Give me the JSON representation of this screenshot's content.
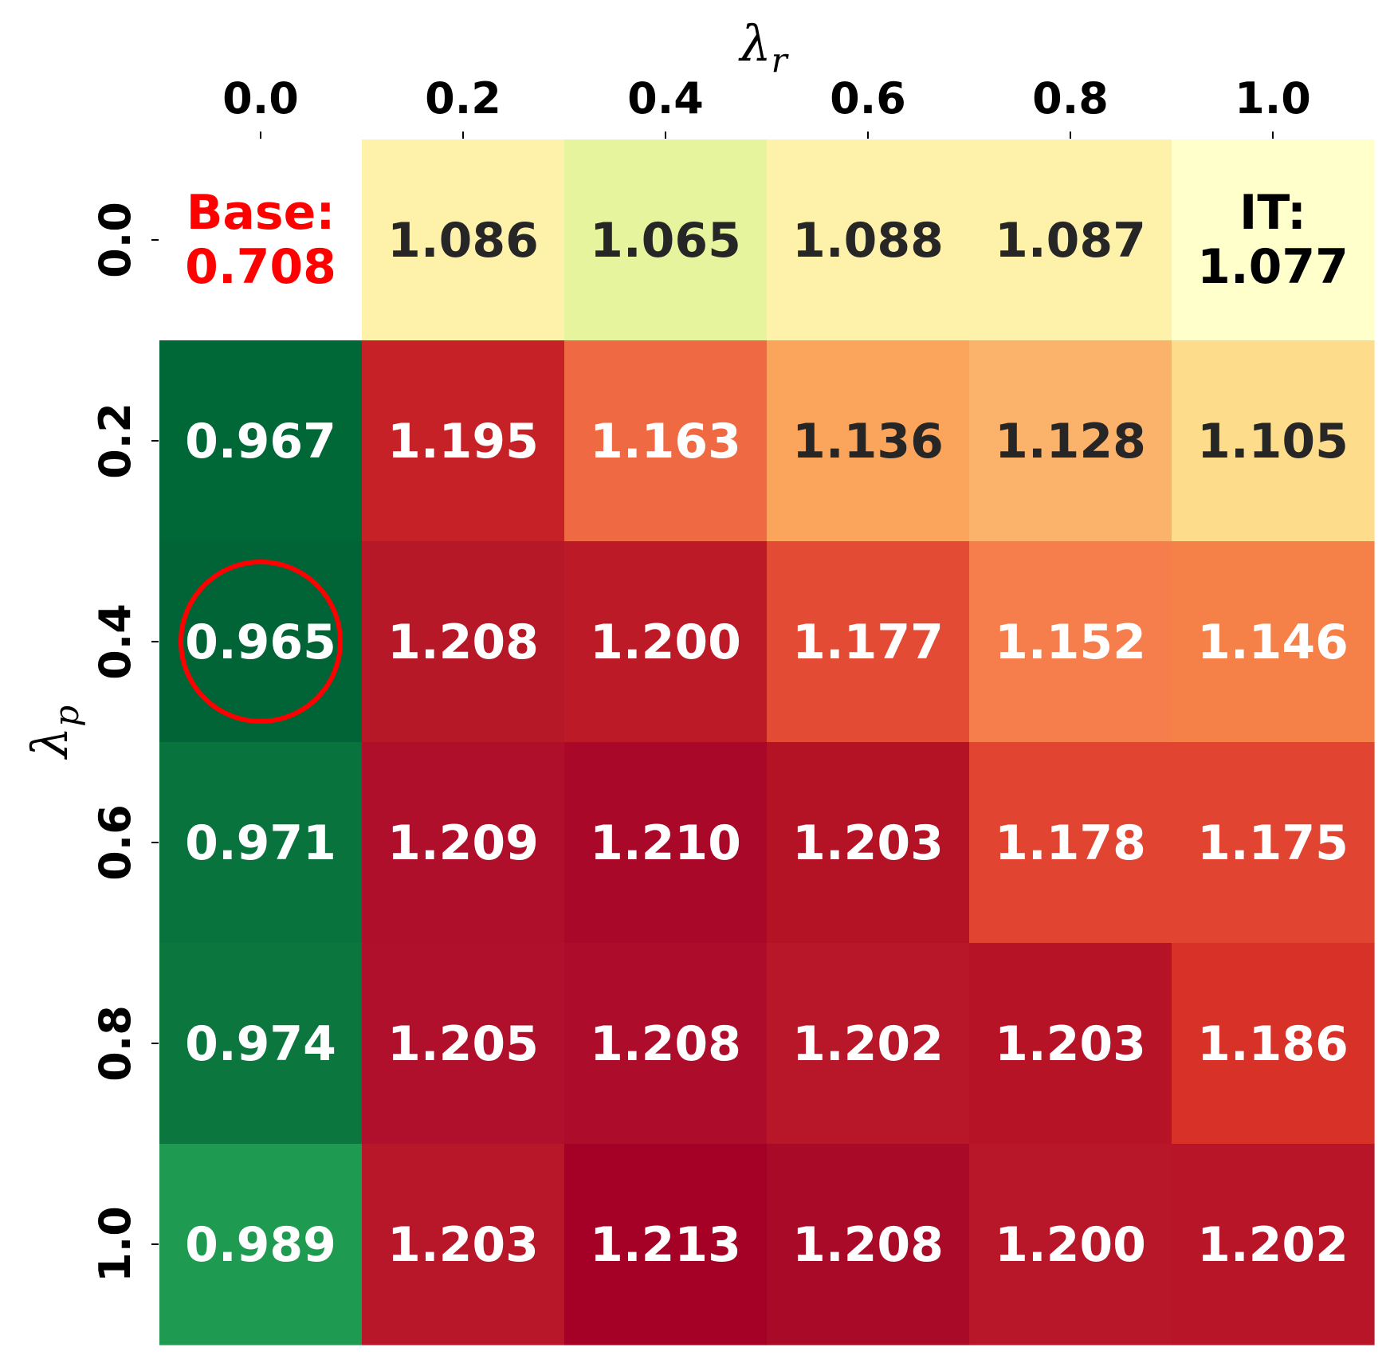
{
  "chart_data": {
    "type": "heatmap",
    "xlabel": "λ",
    "xlabel_sub": "r",
    "ylabel": "λ",
    "ylabel_sub": "p",
    "x_ticks": [
      "0.0",
      "0.2",
      "0.4",
      "0.6",
      "0.8",
      "1.0"
    ],
    "y_ticks": [
      "0.0",
      "0.2",
      "0.4",
      "0.6",
      "0.8",
      "1.0"
    ],
    "x_axis_position": "top",
    "colormap": "RdYlGn_r",
    "grid": false,
    "values": [
      [
        0.708,
        1.086,
        1.065,
        1.088,
        1.087,
        1.077
      ],
      [
        0.967,
        1.195,
        1.163,
        1.136,
        1.128,
        1.105
      ],
      [
        0.965,
        1.208,
        1.2,
        1.177,
        1.152,
        1.146
      ],
      [
        0.971,
        1.209,
        1.21,
        1.203,
        1.178,
        1.175
      ],
      [
        0.974,
        1.205,
        1.208,
        1.202,
        1.203,
        1.186
      ],
      [
        0.989,
        1.203,
        1.213,
        1.208,
        1.2,
        1.202
      ]
    ],
    "labels": [
      [
        "0.708",
        "1.086",
        "1.065",
        "1.088",
        "1.087",
        "1.077"
      ],
      [
        "0.967",
        "1.195",
        "1.163",
        "1.136",
        "1.128",
        "1.105"
      ],
      [
        "0.965",
        "1.208",
        "1.200",
        "1.177",
        "1.152",
        "1.146"
      ],
      [
        "0.971",
        "1.209",
        "1.210",
        "1.203",
        "1.178",
        "1.175"
      ],
      [
        "0.974",
        "1.205",
        "1.208",
        "1.202",
        "1.203",
        "1.186"
      ],
      [
        "0.989",
        "1.203",
        "1.213",
        "1.208",
        "1.200",
        "1.202"
      ]
    ],
    "annotations": [
      {
        "row": 0,
        "col": 0,
        "prefix": "Base:",
        "value": "0.708",
        "color": "#ff0000"
      },
      {
        "row": 0,
        "col": 5,
        "prefix": "IT:",
        "value": "1.077",
        "color": "#000000"
      }
    ],
    "highlight": {
      "row": 2,
      "col": 0,
      "shape": "circle",
      "color": "#ff0000"
    },
    "cell_colors": [
      [
        "#ffffff",
        "#fef2aa",
        "#e6f59d",
        "#fef2aa",
        "#fef2aa",
        "#ffffcc"
      ],
      [
        "#006837",
        "#c62127",
        "#ef6a43",
        "#fba45c",
        "#fbb26a",
        "#fddc8c"
      ],
      [
        "#016437",
        "#b61827",
        "#bd1a27",
        "#e44b34",
        "#f67d4c",
        "#f58149"
      ],
      [
        "#09733d",
        "#af0f2a",
        "#aa0829",
        "#b41326",
        "#e14431",
        "#e14431"
      ],
      [
        "#0c763f",
        "#b0102b",
        "#ad0c2a",
        "#b8172a",
        "#b61327",
        "#d83128"
      ],
      [
        "#1e9b51",
        "#b8172a",
        "#a50026",
        "#a90a28",
        "#b81729",
        "#b81529"
      ]
    ],
    "text_colors": [
      [
        "#ff0000",
        "#262626",
        "#262626",
        "#262626",
        "#262626",
        "#000000"
      ],
      [
        "#ffffff",
        "#ffffff",
        "#ffffff",
        "#262626",
        "#262626",
        "#262626"
      ],
      [
        "#ffffff",
        "#ffffff",
        "#ffffff",
        "#ffffff",
        "#ffffff",
        "#ffffff"
      ],
      [
        "#ffffff",
        "#ffffff",
        "#ffffff",
        "#ffffff",
        "#ffffff",
        "#ffffff"
      ],
      [
        "#ffffff",
        "#ffffff",
        "#ffffff",
        "#ffffff",
        "#ffffff",
        "#ffffff"
      ],
      [
        "#ffffff",
        "#ffffff",
        "#ffffff",
        "#ffffff",
        "#ffffff",
        "#ffffff"
      ]
    ]
  }
}
